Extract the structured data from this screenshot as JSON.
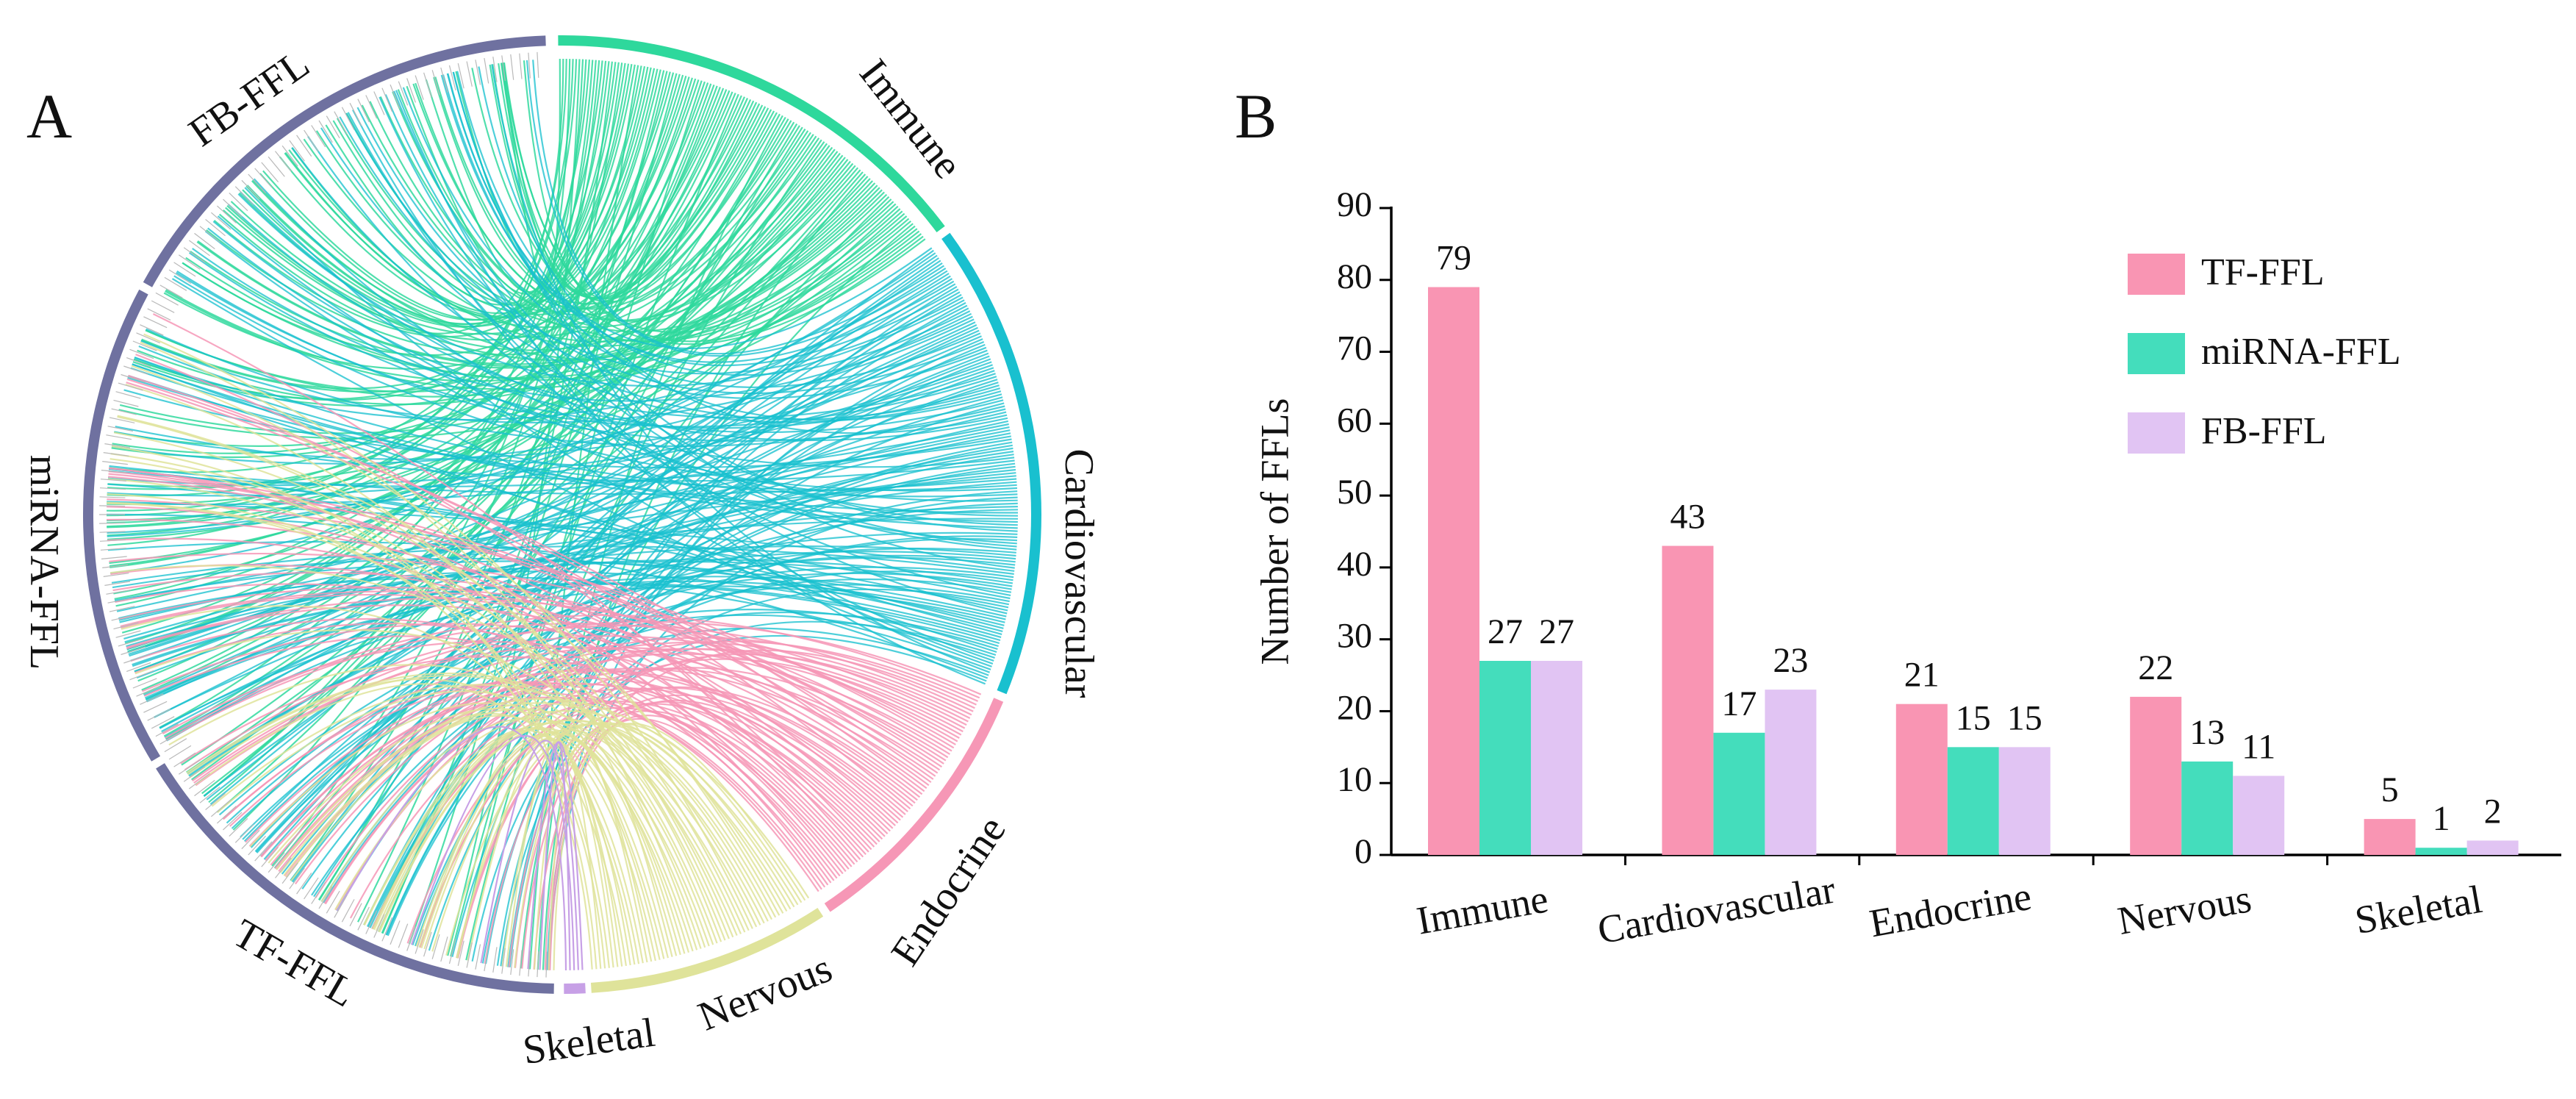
{
  "panels": {
    "a_label": "A",
    "b_label": "B"
  },
  "chart_data": [
    {
      "type": "chord",
      "groups": [
        {
          "label": "Immune",
          "color": "#2ed89c"
        },
        {
          "label": "Cardiovascular",
          "color": "#19c0cf"
        },
        {
          "label": "Endocrine",
          "color": "#f697b6"
        },
        {
          "label": "Nervous",
          "color": "#dfe39a"
        },
        {
          "label": "Skeletal",
          "color": "#c7a0e6"
        },
        {
          "label": "TF-FFL",
          "color": "#6f71a0"
        },
        {
          "label": "miRNA-FFL",
          "color": "#6f71a0"
        },
        {
          "label": "FB-FFL",
          "color": "#6f71a0"
        }
      ]
    },
    {
      "type": "bar",
      "categories": [
        "Immune",
        "Cardiovascular",
        "Endocrine",
        "Nervous",
        "Skeletal"
      ],
      "series": [
        {
          "name": "TF-FFL",
          "color": "#f995b3",
          "values": [
            79,
            43,
            21,
            22,
            5
          ]
        },
        {
          "name": "miRNA-FFL",
          "color": "#44ddbc",
          "values": [
            27,
            17,
            15,
            13,
            1
          ]
        },
        {
          "name": "FB-FFL",
          "color": "#e1c4f3",
          "values": [
            27,
            23,
            15,
            11,
            2
          ]
        }
      ],
      "ylabel": "Number of FFLs",
      "ylim": [
        0,
        90
      ],
      "yticks": [
        0,
        10,
        20,
        30,
        40,
        50,
        60,
        70,
        80,
        90
      ],
      "legend": "top-right",
      "grid": false
    }
  ]
}
